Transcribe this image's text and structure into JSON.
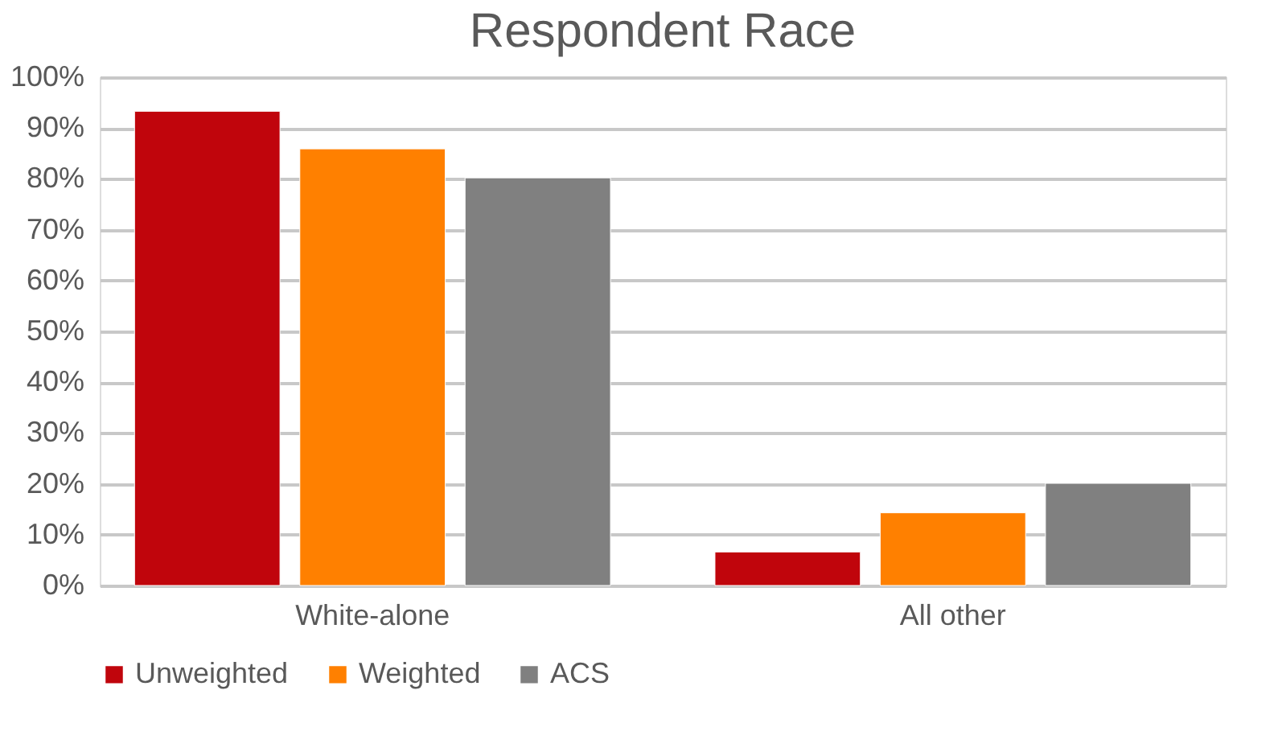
{
  "chart_data": {
    "type": "bar",
    "title": "Respondent Race",
    "categories": [
      "White-alone",
      "All other"
    ],
    "series": [
      {
        "name": "Unweighted",
        "color": "#c0050c",
        "values": [
          93.3,
          6.6
        ]
      },
      {
        "name": "Weighted",
        "color": "#ff8000",
        "values": [
          85.9,
          14.3
        ]
      },
      {
        "name": "ACS",
        "color": "#808080",
        "values": [
          80.2,
          20.1
        ]
      }
    ],
    "ylim": [
      0,
      100
    ],
    "yticks": [
      {
        "value": 0,
        "label": "0%"
      },
      {
        "value": 10,
        "label": "10%"
      },
      {
        "value": 20,
        "label": "20%"
      },
      {
        "value": 30,
        "label": "30%"
      },
      {
        "value": 40,
        "label": "40%"
      },
      {
        "value": 50,
        "label": "50%"
      },
      {
        "value": 60,
        "label": "60%"
      },
      {
        "value": 70,
        "label": "70%"
      },
      {
        "value": 80,
        "label": "80%"
      },
      {
        "value": 90,
        "label": "90%"
      },
      {
        "value": 100,
        "label": "100%"
      }
    ],
    "grid": "y",
    "legend": "bottom"
  }
}
